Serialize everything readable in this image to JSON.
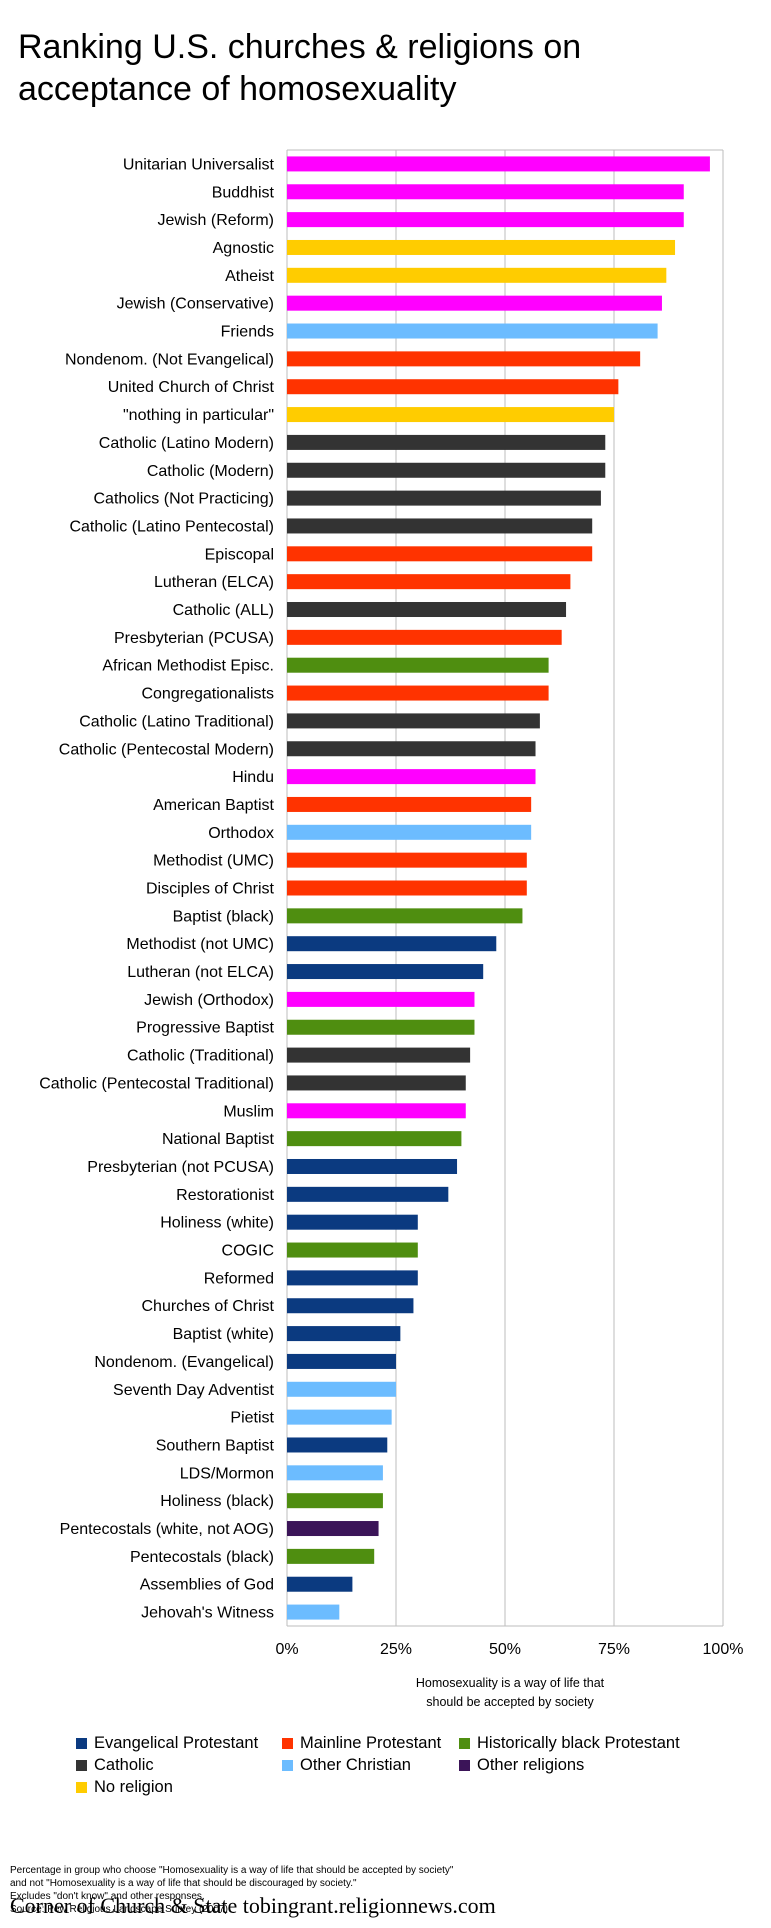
{
  "title_line1": "Ranking U.S. churches & religions on",
  "title_line2": "acceptance of homosexuality",
  "chart_data": {
    "type": "bar",
    "orientation": "horizontal",
    "xlabel_lines": [
      "Homosexuality is a way of life that",
      "should be accepted by society"
    ],
    "xlim": [
      0,
      100
    ],
    "xticks": [
      "0%",
      "25%",
      "50%",
      "75%",
      "100%"
    ],
    "grid": true,
    "legend_placement": "bottom",
    "groups": [
      {
        "name": "Evangelical Protestant",
        "color": "#0b3a80"
      },
      {
        "name": "Mainline Protestant",
        "color": "#ff3300"
      },
      {
        "name": "Historically black Protestant",
        "color": "#4f8e10"
      },
      {
        "name": "Catholic",
        "color": "#333333"
      },
      {
        "name": "Other Christian",
        "color": "#6cbcff"
      },
      {
        "name": "Other religions",
        "color": "#3b1458"
      },
      {
        "name": "No religion",
        "color": "#ffcc00"
      }
    ],
    "bars": [
      {
        "label": "Unitarian Universalist",
        "value": 97,
        "group": "Other religions",
        "color": "#ff00ff"
      },
      {
        "label": "Buddhist",
        "value": 91,
        "group": "Other religions",
        "color": "#ff00ff"
      },
      {
        "label": "Jewish (Reform)",
        "value": 91,
        "group": "Other religions",
        "color": "#ff00ff"
      },
      {
        "label": "Agnostic",
        "value": 89,
        "group": "No religion",
        "color": "#ffcc00"
      },
      {
        "label": "Atheist",
        "value": 87,
        "group": "No religion",
        "color": "#ffcc00"
      },
      {
        "label": "Jewish (Conservative)",
        "value": 86,
        "group": "Other religions",
        "color": "#ff00ff"
      },
      {
        "label": "Friends",
        "value": 85,
        "group": "Other Christian",
        "color": "#6cbcff"
      },
      {
        "label": "Nondenom. (Not Evangelical)",
        "value": 81,
        "group": "Mainline Protestant",
        "color": "#ff3300"
      },
      {
        "label": "United Church of Christ",
        "value": 76,
        "group": "Mainline Protestant",
        "color": "#ff3300"
      },
      {
        "label": "\"nothing in particular\"",
        "value": 75,
        "group": "No religion",
        "color": "#ffcc00"
      },
      {
        "label": "Catholic (Latino Modern)",
        "value": 73,
        "group": "Catholic",
        "color": "#333333"
      },
      {
        "label": "Catholic (Modern)",
        "value": 73,
        "group": "Catholic",
        "color": "#333333"
      },
      {
        "label": "Catholics (Not Practicing)",
        "value": 72,
        "group": "Catholic",
        "color": "#333333"
      },
      {
        "label": "Catholic (Latino Pentecostal)",
        "value": 70,
        "group": "Catholic",
        "color": "#333333"
      },
      {
        "label": "Episcopal",
        "value": 70,
        "group": "Mainline Protestant",
        "color": "#ff3300"
      },
      {
        "label": "Lutheran (ELCA)",
        "value": 65,
        "group": "Mainline Protestant",
        "color": "#ff3300"
      },
      {
        "label": "Catholic (ALL)",
        "value": 64,
        "group": "Catholic",
        "color": "#333333"
      },
      {
        "label": "Presbyterian (PCUSA)",
        "value": 63,
        "group": "Mainline Protestant",
        "color": "#ff3300"
      },
      {
        "label": "African Methodist Episc.",
        "value": 60,
        "group": "Historically black Protestant",
        "color": "#4f8e10"
      },
      {
        "label": "Congregationalists",
        "value": 60,
        "group": "Mainline Protestant",
        "color": "#ff3300"
      },
      {
        "label": "Catholic (Latino Traditional)",
        "value": 58,
        "group": "Catholic",
        "color": "#333333"
      },
      {
        "label": "Catholic (Pentecostal Modern)",
        "value": 57,
        "group": "Catholic",
        "color": "#333333"
      },
      {
        "label": "Hindu",
        "value": 57,
        "group": "Other religions",
        "color": "#ff00ff"
      },
      {
        "label": "American Baptist",
        "value": 56,
        "group": "Mainline Protestant",
        "color": "#ff3300"
      },
      {
        "label": "Orthodox",
        "value": 56,
        "group": "Other Christian",
        "color": "#6cbcff"
      },
      {
        "label": "Methodist (UMC)",
        "value": 55,
        "group": "Mainline Protestant",
        "color": "#ff3300"
      },
      {
        "label": "Disciples of Christ",
        "value": 55,
        "group": "Mainline Protestant",
        "color": "#ff3300"
      },
      {
        "label": "Baptist (black)",
        "value": 54,
        "group": "Historically black Protestant",
        "color": "#4f8e10"
      },
      {
        "label": "Methodist (not UMC)",
        "value": 48,
        "group": "Evangelical Protestant",
        "color": "#0b3a80"
      },
      {
        "label": "Lutheran (not ELCA)",
        "value": 45,
        "group": "Evangelical Protestant",
        "color": "#0b3a80"
      },
      {
        "label": "Jewish (Orthodox)",
        "value": 43,
        "group": "Other religions",
        "color": "#ff00ff"
      },
      {
        "label": "Progressive Baptist",
        "value": 43,
        "group": "Historically black Protestant",
        "color": "#4f8e10"
      },
      {
        "label": "Catholic (Traditional)",
        "value": 42,
        "group": "Catholic",
        "color": "#333333"
      },
      {
        "label": "Catholic (Pentecostal Traditional)",
        "value": 41,
        "group": "Catholic",
        "color": "#333333"
      },
      {
        "label": "Muslim",
        "value": 41,
        "group": "Other religions",
        "color": "#ff00ff"
      },
      {
        "label": "National Baptist",
        "value": 40,
        "group": "Historically black Protestant",
        "color": "#4f8e10"
      },
      {
        "label": "Presbyterian (not PCUSA)",
        "value": 39,
        "group": "Evangelical Protestant",
        "color": "#0b3a80"
      },
      {
        "label": "Restorationist",
        "value": 37,
        "group": "Evangelical Protestant",
        "color": "#0b3a80"
      },
      {
        "label": "Holiness (white)",
        "value": 30,
        "group": "Evangelical Protestant",
        "color": "#0b3a80"
      },
      {
        "label": "COGIC",
        "value": 30,
        "group": "Historically black Protestant",
        "color": "#4f8e10"
      },
      {
        "label": "Reformed",
        "value": 30,
        "group": "Evangelical Protestant",
        "color": "#0b3a80"
      },
      {
        "label": "Churches of Christ",
        "value": 29,
        "group": "Evangelical Protestant",
        "color": "#0b3a80"
      },
      {
        "label": "Baptist (white)",
        "value": 26,
        "group": "Evangelical Protestant",
        "color": "#0b3a80"
      },
      {
        "label": "Nondenom. (Evangelical)",
        "value": 25,
        "group": "Evangelical Protestant",
        "color": "#0b3a80"
      },
      {
        "label": "Seventh Day Adventist",
        "value": 25,
        "group": "Other Christian",
        "color": "#6cbcff"
      },
      {
        "label": "Pietist",
        "value": 24,
        "group": "Other Christian",
        "color": "#6cbcff"
      },
      {
        "label": "Southern Baptist",
        "value": 23,
        "group": "Evangelical Protestant",
        "color": "#0b3a80"
      },
      {
        "label": "LDS/Mormon",
        "value": 22,
        "group": "Other Christian",
        "color": "#6cbcff"
      },
      {
        "label": "Holiness (black)",
        "value": 22,
        "group": "Historically black Protestant",
        "color": "#4f8e10"
      },
      {
        "label": "Pentecostals (white, not AOG)",
        "value": 21,
        "group": "Other religions",
        "color": "#3b1458"
      },
      {
        "label": "Pentecostals  (black)",
        "value": 20,
        "group": "Historically black Protestant",
        "color": "#4f8e10"
      },
      {
        "label": "Assemblies of God",
        "value": 15,
        "group": "Evangelical Protestant",
        "color": "#0b3a80"
      },
      {
        "label": "Jehovah's Witness",
        "value": 12,
        "group": "Other Christian",
        "color": "#6cbcff"
      }
    ]
  },
  "legend": [
    {
      "label": "Evangelical Protestant",
      "color": "#0b3a80"
    },
    {
      "label": "Mainline Protestant",
      "color": "#ff3300"
    },
    {
      "label": "Historically black Protestant",
      "color": "#4f8e10"
    },
    {
      "label": "Catholic",
      "color": "#333333"
    },
    {
      "label": "Other Christian",
      "color": "#6cbcff"
    },
    {
      "label": "Other religions",
      "color": "#3b1458"
    },
    {
      "label": "No religion",
      "color": "#ffcc00"
    }
  ],
  "notes": [
    "Percentage in group who choose \"Homosexuality is a way of life that should be accepted by society\"",
    "and not \"Homosexuality is a way of life that should be discouraged by society.\"",
    "Excludes \"don't know\" and other responses.",
    "Source: Pew Religious Landscape Survey (2007)"
  ],
  "footer": "Corner of Church & State tobingrant.religionnews.com"
}
